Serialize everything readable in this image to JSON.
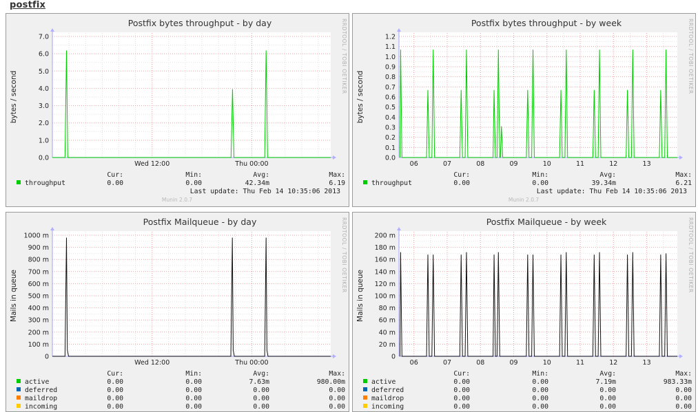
{
  "page": {
    "title": "postfix"
  },
  "branding": {
    "rrdtool_credit": "RRDTOOL / TOBI OETIKER",
    "munin_version": "Munin 2.0.7"
  },
  "legend_headers": {
    "cur": "Cur:",
    "min": "Min:",
    "avg": "Avg:",
    "max": "Max:"
  },
  "chart_data": [
    {
      "id": "bytes-day",
      "type": "line",
      "title": "Postfix bytes throughput - by day",
      "ylabel": "bytes / second",
      "ylim": [
        0,
        7.0
      ],
      "yticks": [
        0,
        1,
        2,
        3,
        4,
        5,
        6,
        7
      ],
      "ytick_labels": [
        "0.0",
        "1.0",
        "2.0",
        "3.0",
        "4.0",
        "5.0",
        "6.0",
        "7.0"
      ],
      "xlim": [
        0,
        33.5
      ],
      "xticks": [
        {
          "x": 12,
          "label": "Wed 12:00"
        },
        {
          "x": 24,
          "label": "Thu 00:00"
        }
      ],
      "x_minor_step": 2,
      "grid": true,
      "series": [
        {
          "name": "throughput",
          "color": "#00cc00",
          "cur": "0.00",
          "min": "0.00",
          "avg": "42.34m",
          "max": "6.19",
          "points": [
            [
              0.0,
              0
            ],
            [
              1.52,
              0
            ],
            [
              1.7,
              6.19
            ],
            [
              1.85,
              0
            ],
            [
              21.5,
              0
            ],
            [
              21.68,
              3.95
            ],
            [
              21.85,
              0
            ],
            [
              25.55,
              0
            ],
            [
              25.72,
              6.19
            ],
            [
              25.9,
              0
            ],
            [
              33.5,
              0
            ]
          ]
        }
      ],
      "last_update": "Last update:  Thu Feb 14 10:35:06 2013"
    },
    {
      "id": "bytes-week",
      "type": "line",
      "title": "Postfix bytes throughput - by week",
      "ylabel": "bytes / second",
      "ylim": [
        0,
        1.2
      ],
      "yticks": [
        0,
        0.1,
        0.2,
        0.3,
        0.4,
        0.5,
        0.6,
        0.7,
        0.8,
        0.9,
        1.0,
        1.1,
        1.2
      ],
      "ytick_labels": [
        "0.0",
        "0.1",
        "0.2",
        "0.3",
        "0.4",
        "0.5",
        "0.6",
        "0.7",
        "0.8",
        "0.9",
        "1.0",
        "1.1",
        "1.2"
      ],
      "xlim": [
        5.55,
        13.92
      ],
      "xticks": [
        {
          "x": 6,
          "label": "06"
        },
        {
          "x": 7,
          "label": "07"
        },
        {
          "x": 8,
          "label": "08"
        },
        {
          "x": 9,
          "label": "09"
        },
        {
          "x": 10,
          "label": "10"
        },
        {
          "x": 11,
          "label": "11"
        },
        {
          "x": 12,
          "label": "12"
        },
        {
          "x": 13,
          "label": "13"
        }
      ],
      "x_minor_step": 0.5,
      "grid": true,
      "series": [
        {
          "name": "throughput",
          "color": "#00cc00",
          "cur": "0.00",
          "min": "0.00",
          "avg": "39.34m",
          "max": "6.21",
          "points": [
            [
              5.58,
              0
            ],
            [
              5.6,
              1.07
            ],
            [
              5.64,
              0
            ],
            [
              6.38,
              0
            ],
            [
              6.42,
              0.67
            ],
            [
              6.46,
              0
            ],
            [
              6.54,
              0
            ],
            [
              6.58,
              1.07
            ],
            [
              6.62,
              0
            ],
            [
              7.38,
              0
            ],
            [
              7.42,
              0.67
            ],
            [
              7.46,
              0
            ],
            [
              7.54,
              0
            ],
            [
              7.58,
              1.07
            ],
            [
              7.62,
              0
            ],
            [
              8.38,
              0
            ],
            [
              8.41,
              0.67
            ],
            [
              8.45,
              0
            ],
            [
              8.5,
              0
            ],
            [
              8.54,
              1.07
            ],
            [
              8.58,
              0
            ],
            [
              8.6,
              0
            ],
            [
              8.63,
              0.31
            ],
            [
              8.67,
              0
            ],
            [
              9.38,
              0
            ],
            [
              9.42,
              0.67
            ],
            [
              9.46,
              0
            ],
            [
              9.54,
              0
            ],
            [
              9.58,
              1.07
            ],
            [
              9.62,
              0
            ],
            [
              10.38,
              0
            ],
            [
              10.42,
              0.67
            ],
            [
              10.46,
              0
            ],
            [
              10.54,
              0
            ],
            [
              10.58,
              1.07
            ],
            [
              10.62,
              0
            ],
            [
              11.38,
              0
            ],
            [
              11.42,
              0.67
            ],
            [
              11.46,
              0
            ],
            [
              11.54,
              0
            ],
            [
              11.58,
              1.07
            ],
            [
              11.62,
              0
            ],
            [
              12.38,
              0
            ],
            [
              12.42,
              0.67
            ],
            [
              12.46,
              0
            ],
            [
              12.54,
              0
            ],
            [
              12.58,
              1.07
            ],
            [
              12.62,
              0
            ],
            [
              13.38,
              0
            ],
            [
              13.42,
              0.67
            ],
            [
              13.46,
              0
            ],
            [
              13.54,
              0
            ],
            [
              13.58,
              1.07
            ],
            [
              13.62,
              0
            ],
            [
              13.92,
              0
            ]
          ]
        }
      ],
      "last_update": "Last update:  Thu Feb 14 10:35:06 2013"
    },
    {
      "id": "mailqueue-day",
      "type": "line",
      "title": "Postfix Mailqueue - by day",
      "ylabel": "Mails in queue",
      "ylim": [
        0,
        1.0
      ],
      "yticks": [
        0,
        0.1,
        0.2,
        0.3,
        0.4,
        0.5,
        0.6,
        0.7,
        0.8,
        0.9,
        1.0
      ],
      "ytick_labels": [
        "0",
        "100 m",
        "200 m",
        "300 m",
        "400 m",
        "500 m",
        "600 m",
        "700 m",
        "800 m",
        "900 m",
        "1000 m"
      ],
      "xlim": [
        0,
        33.5
      ],
      "xticks": [
        {
          "x": 12,
          "label": "Wed 12:00"
        },
        {
          "x": 24,
          "label": "Thu 00:00"
        }
      ],
      "x_minor_step": 2,
      "grid": true,
      "series": [
        {
          "name": "active",
          "color": "#00cc00",
          "cur": "0.00",
          "min": "0.00",
          "avg": "7.63m",
          "max": "980.00m",
          "points": [
            [
              0.0,
              0
            ],
            [
              1.52,
              0
            ],
            [
              1.7,
              0.98
            ],
            [
              1.8,
              0.05
            ],
            [
              1.95,
              0
            ],
            [
              21.48,
              0
            ],
            [
              21.66,
              0.98
            ],
            [
              21.76,
              0.05
            ],
            [
              21.9,
              0
            ],
            [
              25.55,
              0
            ],
            [
              25.72,
              0.98
            ],
            [
              25.82,
              0.05
            ],
            [
              25.95,
              0
            ],
            [
              33.5,
              0
            ]
          ]
        },
        {
          "name": "deferred",
          "color": "#0066b3",
          "cur": "0.00",
          "min": "0.00",
          "avg": "0.00",
          "max": "0.00",
          "points": []
        },
        {
          "name": "maildrop",
          "color": "#ff8000",
          "cur": "0.00",
          "min": "0.00",
          "avg": "0.00",
          "max": "0.00",
          "points": []
        },
        {
          "name": "incoming",
          "color": "#ffcc00",
          "cur": "0.00",
          "min": "0.00",
          "avg": "0.00",
          "max": "0.00",
          "points": []
        }
      ]
    },
    {
      "id": "mailqueue-week",
      "type": "line",
      "title": "Postfix Mailqueue - by week",
      "ylabel": "Mails in queue",
      "ylim": [
        0,
        0.2
      ],
      "yticks": [
        0,
        0.02,
        0.04,
        0.06,
        0.08,
        0.1,
        0.12,
        0.14,
        0.16,
        0.18,
        0.2
      ],
      "ytick_labels": [
        "0",
        "20 m",
        "40 m",
        "60 m",
        "80 m",
        "100 m",
        "120 m",
        "140 m",
        "160 m",
        "180 m",
        "200 m"
      ],
      "xlim": [
        5.55,
        13.92
      ],
      "xticks": [
        {
          "x": 6,
          "label": "06"
        },
        {
          "x": 7,
          "label": "07"
        },
        {
          "x": 8,
          "label": "08"
        },
        {
          "x": 9,
          "label": "09"
        },
        {
          "x": 10,
          "label": "10"
        },
        {
          "x": 11,
          "label": "11"
        },
        {
          "x": 12,
          "label": "12"
        },
        {
          "x": 13,
          "label": "13"
        }
      ],
      "x_minor_step": 0.5,
      "grid": true,
      "series": [
        {
          "name": "active",
          "color": "#00cc00",
          "cur": "0.00",
          "min": "0.00",
          "avg": "7.19m",
          "max": "983.33m",
          "points": [
            [
              5.58,
              0
            ],
            [
              5.6,
              0.172
            ],
            [
              5.64,
              0
            ],
            [
              6.38,
              0
            ],
            [
              6.42,
              0.168
            ],
            [
              6.46,
              0
            ],
            [
              6.54,
              0
            ],
            [
              6.58,
              0.168
            ],
            [
              6.62,
              0
            ],
            [
              7.38,
              0
            ],
            [
              7.42,
              0.168
            ],
            [
              7.46,
              0
            ],
            [
              7.54,
              0
            ],
            [
              7.58,
              0.172
            ],
            [
              7.62,
              0
            ],
            [
              8.38,
              0
            ],
            [
              8.41,
              0.168
            ],
            [
              8.45,
              0
            ],
            [
              8.5,
              0
            ],
            [
              8.54,
              0.172
            ],
            [
              8.58,
              0
            ],
            [
              9.38,
              0
            ],
            [
              9.42,
              0.168
            ],
            [
              9.46,
              0
            ],
            [
              9.54,
              0
            ],
            [
              9.58,
              0.168
            ],
            [
              9.62,
              0
            ],
            [
              10.38,
              0
            ],
            [
              10.42,
              0.168
            ],
            [
              10.46,
              0
            ],
            [
              10.54,
              0
            ],
            [
              10.58,
              0.172
            ],
            [
              10.62,
              0
            ],
            [
              11.38,
              0
            ],
            [
              11.42,
              0.168
            ],
            [
              11.46,
              0
            ],
            [
              11.54,
              0
            ],
            [
              11.58,
              0.172
            ],
            [
              11.62,
              0
            ],
            [
              12.38,
              0
            ],
            [
              12.42,
              0.168
            ],
            [
              12.46,
              0
            ],
            [
              12.54,
              0
            ],
            [
              12.58,
              0.172
            ],
            [
              12.62,
              0
            ],
            [
              13.38,
              0
            ],
            [
              13.42,
              0.168
            ],
            [
              13.46,
              0
            ],
            [
              13.54,
              0
            ],
            [
              13.58,
              0.17
            ],
            [
              13.62,
              0
            ],
            [
              13.92,
              0
            ]
          ]
        },
        {
          "name": "deferred",
          "color": "#0066b3",
          "cur": "0.00",
          "min": "0.00",
          "avg": "0.00",
          "max": "0.00",
          "points": []
        },
        {
          "name": "maildrop",
          "color": "#ff8000",
          "cur": "0.00",
          "min": "0.00",
          "avg": "0.00",
          "max": "0.00",
          "points": []
        },
        {
          "name": "incoming",
          "color": "#ffcc00",
          "cur": "0.00",
          "min": "0.00",
          "avg": "0.00",
          "max": "0.00",
          "points": []
        }
      ]
    }
  ]
}
